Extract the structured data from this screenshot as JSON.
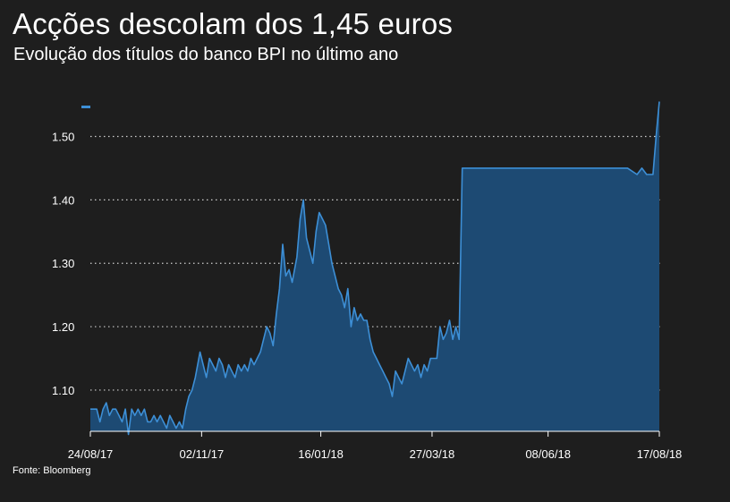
{
  "title": "Acções descolam dos 1,45 euros",
  "subtitle": "Evolução dos títulos do banco BPI no último ano",
  "source": "Fonte: Bloomberg",
  "colors": {
    "background": "#1e1e1e",
    "line": "#3d8fd6",
    "area": "#1d4a73",
    "grid": "#cfcfcf",
    "text": "#ffffff"
  },
  "chart_data": {
    "type": "area",
    "title": "Acções descolam dos 1,45 euros",
    "subtitle": "Evolução dos títulos do banco BPI no último ano",
    "xlabel": "",
    "ylabel": "",
    "ylim": [
      1.035,
      1.56
    ],
    "xlim": [
      "2017-08-24",
      "2018-08-17"
    ],
    "grid": "horizontal-dotted",
    "legend": "none",
    "y_ticks": [
      {
        "value": 1.1,
        "label": "1.10"
      },
      {
        "value": 1.2,
        "label": "1.20"
      },
      {
        "value": 1.3,
        "label": "1.30"
      },
      {
        "value": 1.4,
        "label": "1.40"
      },
      {
        "value": 1.5,
        "label": "1.50"
      }
    ],
    "x_ticks": [
      {
        "date": "2017-08-24",
        "label": "24/08/17"
      },
      {
        "date": "2017-11-02",
        "label": "02/11/17"
      },
      {
        "date": "2018-01-16",
        "label": "16/01/18"
      },
      {
        "date": "2018-03-27",
        "label": "27/03/18"
      },
      {
        "date": "2018-06-08",
        "label": "08/06/18"
      },
      {
        "date": "2018-08-17",
        "label": "17/08/18"
      }
    ],
    "series": [
      {
        "points": [
          [
            "2017-08-24",
            1.07
          ],
          [
            "2017-08-26",
            1.07
          ],
          [
            "2017-08-28",
            1.07
          ],
          [
            "2017-08-30",
            1.05
          ],
          [
            "2017-09-01",
            1.07
          ],
          [
            "2017-09-03",
            1.08
          ],
          [
            "2017-09-05",
            1.06
          ],
          [
            "2017-09-07",
            1.07
          ],
          [
            "2017-09-09",
            1.07
          ],
          [
            "2017-09-11",
            1.06
          ],
          [
            "2017-09-13",
            1.05
          ],
          [
            "2017-09-15",
            1.07
          ],
          [
            "2017-09-17",
            1.03
          ],
          [
            "2017-09-19",
            1.07
          ],
          [
            "2017-09-21",
            1.06
          ],
          [
            "2017-09-23",
            1.07
          ],
          [
            "2017-09-25",
            1.06
          ],
          [
            "2017-09-27",
            1.07
          ],
          [
            "2017-09-29",
            1.05
          ],
          [
            "2017-10-01",
            1.05
          ],
          [
            "2017-10-03",
            1.06
          ],
          [
            "2017-10-05",
            1.05
          ],
          [
            "2017-10-07",
            1.06
          ],
          [
            "2017-10-09",
            1.05
          ],
          [
            "2017-10-11",
            1.04
          ],
          [
            "2017-10-13",
            1.06
          ],
          [
            "2017-10-15",
            1.05
          ],
          [
            "2017-10-17",
            1.04
          ],
          [
            "2017-10-19",
            1.05
          ],
          [
            "2017-10-21",
            1.04
          ],
          [
            "2017-10-23",
            1.07
          ],
          [
            "2017-10-25",
            1.09
          ],
          [
            "2017-10-27",
            1.1
          ],
          [
            "2017-10-29",
            1.12
          ],
          [
            "2017-11-01",
            1.16
          ],
          [
            "2017-11-03",
            1.14
          ],
          [
            "2017-11-05",
            1.12
          ],
          [
            "2017-11-07",
            1.15
          ],
          [
            "2017-11-09",
            1.14
          ],
          [
            "2017-11-11",
            1.13
          ],
          [
            "2017-11-13",
            1.15
          ],
          [
            "2017-11-15",
            1.14
          ],
          [
            "2017-11-17",
            1.12
          ],
          [
            "2017-11-19",
            1.14
          ],
          [
            "2017-11-21",
            1.13
          ],
          [
            "2017-11-23",
            1.12
          ],
          [
            "2017-11-25",
            1.14
          ],
          [
            "2017-11-27",
            1.13
          ],
          [
            "2017-11-29",
            1.14
          ],
          [
            "2017-12-01",
            1.13
          ],
          [
            "2017-12-03",
            1.15
          ],
          [
            "2017-12-05",
            1.14
          ],
          [
            "2017-12-07",
            1.15
          ],
          [
            "2017-12-09",
            1.16
          ],
          [
            "2017-12-11",
            1.18
          ],
          [
            "2017-12-13",
            1.2
          ],
          [
            "2017-12-15",
            1.19
          ],
          [
            "2017-12-17",
            1.17
          ],
          [
            "2017-12-19",
            1.22
          ],
          [
            "2017-12-21",
            1.26
          ],
          [
            "2017-12-23",
            1.33
          ],
          [
            "2017-12-25",
            1.28
          ],
          [
            "2017-12-27",
            1.29
          ],
          [
            "2017-12-29",
            1.27
          ],
          [
            "2018-01-01",
            1.31
          ],
          [
            "2018-01-03",
            1.37
          ],
          [
            "2018-01-05",
            1.4
          ],
          [
            "2018-01-07",
            1.34
          ],
          [
            "2018-01-09",
            1.32
          ],
          [
            "2018-01-11",
            1.3
          ],
          [
            "2018-01-13",
            1.35
          ],
          [
            "2018-01-15",
            1.38
          ],
          [
            "2018-01-17",
            1.37
          ],
          [
            "2018-01-19",
            1.36
          ],
          [
            "2018-01-21",
            1.33
          ],
          [
            "2018-01-23",
            1.3
          ],
          [
            "2018-01-25",
            1.28
          ],
          [
            "2018-01-27",
            1.26
          ],
          [
            "2018-01-29",
            1.25
          ],
          [
            "2018-01-31",
            1.23
          ],
          [
            "2018-02-02",
            1.26
          ],
          [
            "2018-02-04",
            1.2
          ],
          [
            "2018-02-06",
            1.23
          ],
          [
            "2018-02-08",
            1.21
          ],
          [
            "2018-02-10",
            1.22
          ],
          [
            "2018-02-12",
            1.21
          ],
          [
            "2018-02-14",
            1.21
          ],
          [
            "2018-02-16",
            1.18
          ],
          [
            "2018-02-18",
            1.16
          ],
          [
            "2018-02-20",
            1.15
          ],
          [
            "2018-02-22",
            1.14
          ],
          [
            "2018-02-24",
            1.13
          ],
          [
            "2018-02-26",
            1.12
          ],
          [
            "2018-02-28",
            1.11
          ],
          [
            "2018-03-02",
            1.09
          ],
          [
            "2018-03-04",
            1.13
          ],
          [
            "2018-03-06",
            1.12
          ],
          [
            "2018-03-08",
            1.11
          ],
          [
            "2018-03-10",
            1.13
          ],
          [
            "2018-03-12",
            1.15
          ],
          [
            "2018-03-14",
            1.14
          ],
          [
            "2018-03-16",
            1.13
          ],
          [
            "2018-03-18",
            1.14
          ],
          [
            "2018-03-20",
            1.12
          ],
          [
            "2018-03-22",
            1.14
          ],
          [
            "2018-03-24",
            1.13
          ],
          [
            "2018-03-26",
            1.15
          ],
          [
            "2018-03-28",
            1.15
          ],
          [
            "2018-03-30",
            1.15
          ],
          [
            "2018-04-01",
            1.2
          ],
          [
            "2018-04-03",
            1.18
          ],
          [
            "2018-04-05",
            1.19
          ],
          [
            "2018-04-07",
            1.21
          ],
          [
            "2018-04-09",
            1.18
          ],
          [
            "2018-04-11",
            1.2
          ],
          [
            "2018-04-13",
            1.18
          ],
          [
            "2018-04-15",
            1.45
          ],
          [
            "2018-04-25",
            1.45
          ],
          [
            "2018-05-10",
            1.45
          ],
          [
            "2018-05-25",
            1.45
          ],
          [
            "2018-06-10",
            1.45
          ],
          [
            "2018-06-25",
            1.45
          ],
          [
            "2018-07-10",
            1.45
          ],
          [
            "2018-07-20",
            1.45
          ],
          [
            "2018-07-28",
            1.45
          ],
          [
            "2018-08-03",
            1.44
          ],
          [
            "2018-08-06",
            1.45
          ],
          [
            "2018-08-09",
            1.44
          ],
          [
            "2018-08-13",
            1.44
          ],
          [
            "2018-08-15",
            1.5
          ],
          [
            "2018-08-17",
            1.555
          ]
        ]
      }
    ]
  }
}
